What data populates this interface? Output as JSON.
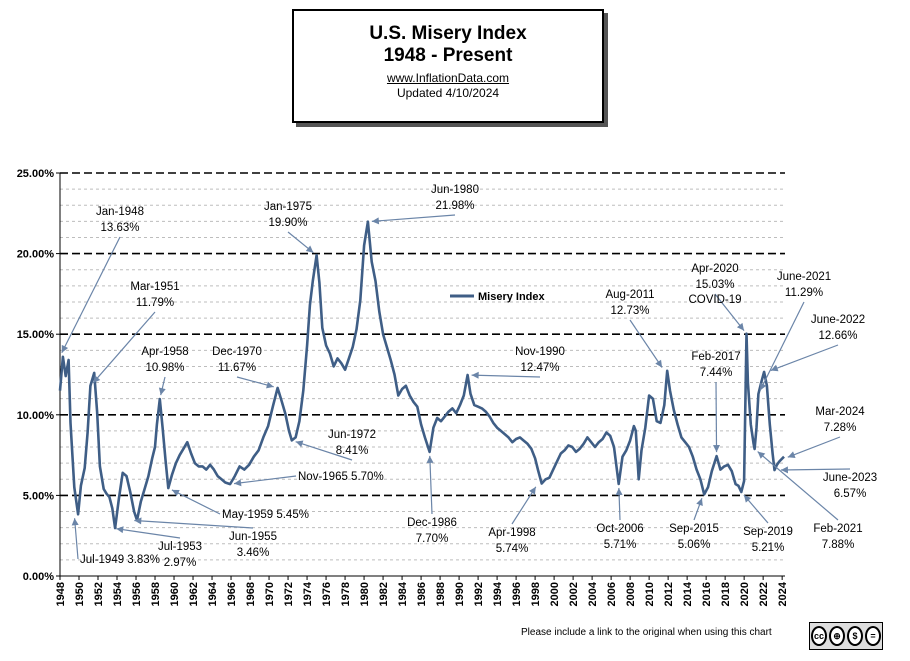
{
  "header": {
    "title_line1": "U.S. Misery Index",
    "title_line2": "1948 - Present",
    "source": "www.InflationData.com",
    "updated": "Updated  4/10/2024"
  },
  "footer": {
    "note": "Please include a link to the original when using this chart",
    "license": "cc by nc nd"
  },
  "chart_data": {
    "type": "line",
    "title": "U.S. Misery Index 1948 - Present",
    "xlabel": "",
    "ylabel": "",
    "xlim": [
      1948,
      2024.3
    ],
    "ylim": [
      0,
      25
    ],
    "y_ticks": [
      "0.00%",
      "5.00%",
      "10.00%",
      "15.00%",
      "20.00%",
      "25.00%"
    ],
    "y_tick_values": [
      0,
      5,
      10,
      15,
      20,
      25
    ],
    "x_ticks": [
      "1948",
      "1950",
      "1952",
      "1954",
      "1956",
      "1958",
      "1960",
      "1962",
      "1964",
      "1966",
      "1968",
      "1970",
      "1972",
      "1974",
      "1976",
      "1978",
      "1980",
      "1982",
      "1984",
      "1986",
      "1988",
      "1990",
      "1992",
      "1994",
      "1996",
      "1998",
      "2000",
      "2002",
      "2004",
      "2006",
      "2008",
      "2010",
      "2012",
      "2014",
      "2016",
      "2018",
      "2020",
      "2022",
      "2024"
    ],
    "legend": {
      "label": "Misery Index",
      "position": "center"
    },
    "series": [
      {
        "name": "Misery Index",
        "color": "#3F5E86",
        "x": [
          1948,
          1948.3,
          1948.6,
          1948.9,
          1949.1,
          1949.5,
          1949.9,
          1950.2,
          1950.6,
          1950.9,
          1951.2,
          1951.6,
          1951.9,
          1952.2,
          1952.6,
          1952.9,
          1953.2,
          1953.5,
          1953.8,
          1954.2,
          1954.6,
          1955,
          1955.4,
          1955.8,
          1956.1,
          1956.5,
          1956.9,
          1957.3,
          1957.7,
          1958,
          1958.2,
          1958.5,
          1958.8,
          1959.1,
          1959.4,
          1959.8,
          1960.2,
          1960.6,
          1961,
          1961.4,
          1961.8,
          1962.2,
          1962.6,
          1963,
          1963.4,
          1963.8,
          1964.2,
          1964.6,
          1965,
          1965.4,
          1965.9,
          1966.4,
          1966.9,
          1967.4,
          1967.9,
          1968.4,
          1968.9,
          1969.4,
          1969.9,
          1970.4,
          1970.9,
          1971.3,
          1971.7,
          1972.1,
          1972.4,
          1972.8,
          1973.2,
          1973.6,
          1974,
          1974.3,
          1974.6,
          1975,
          1975.3,
          1975.6,
          1976,
          1976.4,
          1976.8,
          1977.2,
          1977.6,
          1978,
          1978.4,
          1978.8,
          1979.2,
          1979.6,
          1980,
          1980.4,
          1980.8,
          1981.2,
          1981.6,
          1982,
          1982.4,
          1982.8,
          1983.2,
          1983.6,
          1984,
          1984.4,
          1984.8,
          1985.2,
          1985.6,
          1986,
          1986.4,
          1986.9,
          1987.3,
          1987.7,
          1988.1,
          1988.5,
          1988.9,
          1989.3,
          1989.7,
          1990.1,
          1990.5,
          1990.9,
          1991.2,
          1991.6,
          1992,
          1992.4,
          1992.8,
          1993.2,
          1993.6,
          1994,
          1994.4,
          1994.8,
          1995.2,
          1995.6,
          1996,
          1996.4,
          1996.8,
          1997.2,
          1997.6,
          1998,
          1998.3,
          1998.7,
          1999.1,
          1999.5,
          1999.9,
          2000.3,
          2000.7,
          2001.1,
          2001.5,
          2001.9,
          2002.3,
          2002.7,
          2003.1,
          2003.5,
          2003.9,
          2004.3,
          2004.7,
          2005.1,
          2005.5,
          2005.9,
          2006.3,
          2006.8,
          2007.2,
          2007.6,
          2008,
          2008.4,
          2008.6,
          2008.9,
          2009.2,
          2009.6,
          2010,
          2010.4,
          2010.8,
          2011.2,
          2011.6,
          2011.9,
          2012.2,
          2012.6,
          2013,
          2013.4,
          2013.8,
          2014.2,
          2014.6,
          2015,
          2015.4,
          2015.8,
          2016.2,
          2016.6,
          2017.1,
          2017.5,
          2017.9,
          2018.3,
          2018.7,
          2019.1,
          2019.4,
          2019.7,
          2020,
          2020.25,
          2020.4,
          2020.7,
          2021,
          2021.1,
          2021.3,
          2021.5,
          2021.8,
          2022.1,
          2022.4,
          2022.7,
          2023,
          2023.2,
          2023.45,
          2023.7,
          2024,
          2024.2
        ],
        "values": [
          11.5,
          13.6,
          12.4,
          13.4,
          9.5,
          5.5,
          3.83,
          5.6,
          6.7,
          8.9,
          11.79,
          12.6,
          10.2,
          6.8,
          5.4,
          5.1,
          4.9,
          4.2,
          2.97,
          4.8,
          6.4,
          6.2,
          5.2,
          4.0,
          3.46,
          4.6,
          5.4,
          6.2,
          7.3,
          8.0,
          9.4,
          10.98,
          9.2,
          7.2,
          5.45,
          6.3,
          7.0,
          7.5,
          7.9,
          8.3,
          7.6,
          7.0,
          6.8,
          6.8,
          6.6,
          6.9,
          6.6,
          6.2,
          6.0,
          5.8,
          5.7,
          6.2,
          6.8,
          6.6,
          6.9,
          7.4,
          7.8,
          8.6,
          9.3,
          10.5,
          11.67,
          10.9,
          10.1,
          9.0,
          8.41,
          8.6,
          9.6,
          11.5,
          14.3,
          16.8,
          18.3,
          19.9,
          18.2,
          15.4,
          14.3,
          13.8,
          13.0,
          13.5,
          13.2,
          12.8,
          13.5,
          14.2,
          15.3,
          17.1,
          20.5,
          21.98,
          19.5,
          18.3,
          16.4,
          15.0,
          14.2,
          13.4,
          12.5,
          11.2,
          11.6,
          11.8,
          11.2,
          10.8,
          10.5,
          9.4,
          8.6,
          7.7,
          9.2,
          9.8,
          9.6,
          9.9,
          10.2,
          10.4,
          10.1,
          10.6,
          11.2,
          12.47,
          11.3,
          10.6,
          10.5,
          10.4,
          10.2,
          9.9,
          9.5,
          9.2,
          9.0,
          8.8,
          8.6,
          8.3,
          8.5,
          8.6,
          8.4,
          8.2,
          7.9,
          7.3,
          6.6,
          5.74,
          6.0,
          6.1,
          6.6,
          7.1,
          7.6,
          7.8,
          8.1,
          8.0,
          7.7,
          7.9,
          8.2,
          8.6,
          8.3,
          8.0,
          8.3,
          8.5,
          8.9,
          8.7,
          8.0,
          5.71,
          7.4,
          7.8,
          8.4,
          9.3,
          9.0,
          6.0,
          7.8,
          9.2,
          11.2,
          11.0,
          9.6,
          9.5,
          10.6,
          12.73,
          11.5,
          10.3,
          9.4,
          8.6,
          8.3,
          8.0,
          7.4,
          6.6,
          6.0,
          5.06,
          5.5,
          6.5,
          7.44,
          6.6,
          6.8,
          6.9,
          6.5,
          5.7,
          5.6,
          5.21,
          5.9,
          15.03,
          12.0,
          9.4,
          8.2,
          7.88,
          9.2,
          11.29,
          12.0,
          12.66,
          11.8,
          9.4,
          7.6,
          6.57,
          6.9,
          7.1,
          7.28,
          7.4
        ]
      }
    ],
    "annotations": [
      {
        "label": "Jan-1948",
        "value": "13.63%",
        "x": 1948.0,
        "y": 13.63
      },
      {
        "label": "Mar-1951",
        "value": "11.79%",
        "x": 1951.2,
        "y": 11.79
      },
      {
        "label": "Apr-1958",
        "value": "10.98%",
        "x": 1958.5,
        "y": 10.98
      },
      {
        "label": "Dec-1970",
        "value": "11.67%",
        "x": 1970.9,
        "y": 11.67
      },
      {
        "label": "Jan-1975",
        "value": "19.90%",
        "x": 1975.0,
        "y": 19.9
      },
      {
        "label": "Jun-1980",
        "value": "21.98%",
        "x": 1980.4,
        "y": 21.98
      },
      {
        "label": "Jun-1972",
        "value": "8.41%",
        "x": 1972.4,
        "y": 8.41
      },
      {
        "label": "Nov-1965",
        "value": "5.70%",
        "x": 1965.9,
        "y": 5.7
      },
      {
        "label": "May-1959",
        "value": "5.45%",
        "x": 1959.4,
        "y": 5.45
      },
      {
        "label": "Jul-1949",
        "value": "3.83%",
        "x": 1949.5,
        "y": 3.83
      },
      {
        "label": "Jul-1953",
        "value": "2.97%",
        "x": 1953.5,
        "y": 2.97
      },
      {
        "label": "Jun-1955",
        "value": "3.46%",
        "x": 1955.4,
        "y": 3.46
      },
      {
        "label": "Dec-1986",
        "value": "7.70%",
        "x": 1986.9,
        "y": 7.7
      },
      {
        "label": "Nov-1990",
        "value": "12.47%",
        "x": 1990.9,
        "y": 12.47
      },
      {
        "label": "Apr-1998",
        "value": "5.74%",
        "x": 1998.3,
        "y": 5.74
      },
      {
        "label": "Oct-2006",
        "value": "5.71%",
        "x": 2006.8,
        "y": 5.71
      },
      {
        "label": "Aug-2011",
        "value": "12.73%",
        "x": 2011.6,
        "y": 12.73
      },
      {
        "label": "Sep-2015",
        "value": "5.06%",
        "x": 2015.7,
        "y": 5.06
      },
      {
        "label": "Feb-2017",
        "value": "7.44%",
        "x": 2017.1,
        "y": 7.44
      },
      {
        "label": "Sep-2019",
        "value": "5.21%",
        "x": 2019.7,
        "y": 5.21
      },
      {
        "label": "Apr-2020",
        "value": "15.03%",
        "x": 2020.25,
        "y": 15.03
      },
      {
        "label": "COVID-19",
        "value": "",
        "x": 2020.25,
        "y": 15.03
      },
      {
        "label": "Feb-2021",
        "value": "7.88%",
        "x": 2021.1,
        "y": 7.88
      },
      {
        "label": "June-2021",
        "value": "11.29%",
        "x": 2021.5,
        "y": 11.29
      },
      {
        "label": "June-2022",
        "value": "12.66%",
        "x": 2022.4,
        "y": 12.66
      },
      {
        "label": "June-2023",
        "value": "6.57%",
        "x": 2023.45,
        "y": 6.57
      },
      {
        "label": "Mar-2024",
        "value": "7.28%",
        "x": 2024.2,
        "y": 7.28
      }
    ]
  }
}
